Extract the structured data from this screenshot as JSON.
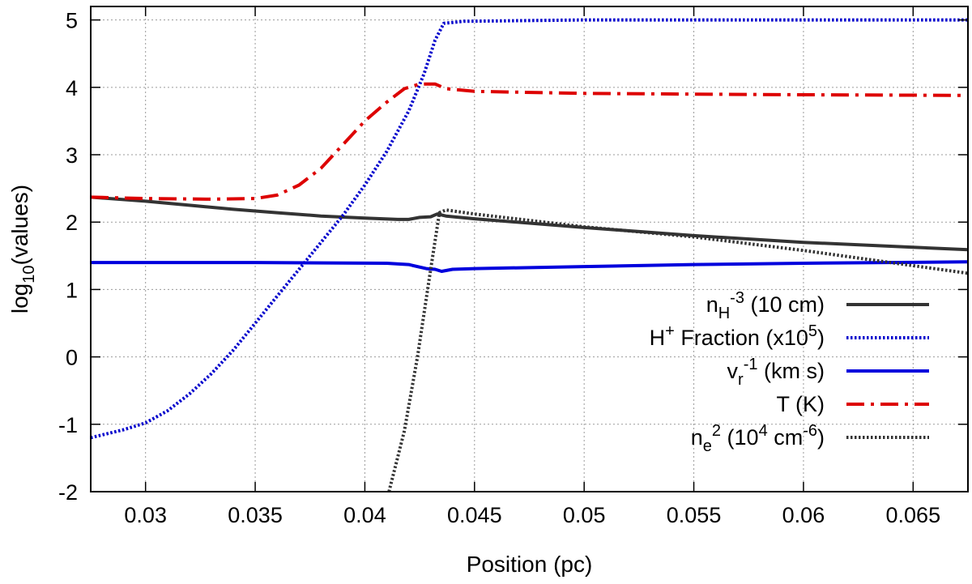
{
  "chart_data": {
    "type": "line",
    "xlabel": "Position (pc)",
    "ylabel": {
      "base": "log",
      "sub": "10",
      "rest": "(values)"
    },
    "xlim": [
      0.0275,
      0.0675
    ],
    "ylim": [
      -2,
      5.2
    ],
    "xticks": [
      0.03,
      0.035,
      0.04,
      0.045,
      0.05,
      0.055,
      0.06,
      0.065
    ],
    "xtick_labels": [
      "0.03",
      "0.035",
      "0.04",
      "0.045",
      "0.05",
      "0.055",
      "0.06",
      "0.065"
    ],
    "yticks": [
      -2,
      -1,
      0,
      1,
      2,
      3,
      4,
      5
    ],
    "ytick_labels": [
      "-2",
      "-1",
      "0",
      "1",
      "2",
      "3",
      "4",
      "5"
    ],
    "grid": true,
    "legend_position": "bottom-right",
    "series": [
      {
        "id": "nH",
        "label": {
          "main": "n",
          "sub": "H",
          "rest": " (10 cm",
          "sup": "-3",
          "tail": ")"
        },
        "color": "#333333",
        "style": "solid",
        "points": [
          [
            0.0275,
            2.37
          ],
          [
            0.03,
            2.31
          ],
          [
            0.032,
            2.25
          ],
          [
            0.034,
            2.19
          ],
          [
            0.036,
            2.14
          ],
          [
            0.038,
            2.09
          ],
          [
            0.04,
            2.06
          ],
          [
            0.0415,
            2.04
          ],
          [
            0.042,
            2.04
          ],
          [
            0.0425,
            2.07
          ],
          [
            0.043,
            2.08
          ],
          [
            0.0433,
            2.12
          ],
          [
            0.0437,
            2.09
          ],
          [
            0.045,
            2.05
          ],
          [
            0.05,
            1.92
          ],
          [
            0.055,
            1.8
          ],
          [
            0.06,
            1.7
          ],
          [
            0.0675,
            1.59
          ]
        ]
      },
      {
        "id": "hplus",
        "label": {
          "main": "H",
          "sup": "+",
          "rest": " Fraction (x10",
          "sup2": "5",
          "tail": ")"
        },
        "color": "#0000cc",
        "style": "dotted",
        "points": [
          [
            0.0275,
            -1.2
          ],
          [
            0.028,
            -1.16
          ],
          [
            0.029,
            -1.08
          ],
          [
            0.03,
            -0.98
          ],
          [
            0.031,
            -0.8
          ],
          [
            0.032,
            -0.55
          ],
          [
            0.033,
            -0.25
          ],
          [
            0.034,
            0.1
          ],
          [
            0.035,
            0.5
          ],
          [
            0.036,
            0.9
          ],
          [
            0.037,
            1.3
          ],
          [
            0.038,
            1.7
          ],
          [
            0.039,
            2.1
          ],
          [
            0.04,
            2.55
          ],
          [
            0.041,
            3.05
          ],
          [
            0.042,
            3.65
          ],
          [
            0.0427,
            4.2
          ],
          [
            0.0432,
            4.7
          ],
          [
            0.0436,
            4.95
          ],
          [
            0.0445,
            4.98
          ],
          [
            0.05,
            5.0
          ],
          [
            0.0675,
            5.0
          ]
        ]
      },
      {
        "id": "vr",
        "label": {
          "main": "v",
          "sub": "r",
          "rest": " (km s",
          "sup": "-1",
          "tail": ")"
        },
        "color": "#0000dd",
        "style": "solid",
        "points": [
          [
            0.0275,
            1.4
          ],
          [
            0.035,
            1.4
          ],
          [
            0.041,
            1.39
          ],
          [
            0.042,
            1.37
          ],
          [
            0.0428,
            1.31
          ],
          [
            0.0432,
            1.3
          ],
          [
            0.0435,
            1.27
          ],
          [
            0.044,
            1.3
          ],
          [
            0.045,
            1.31
          ],
          [
            0.05,
            1.34
          ],
          [
            0.055,
            1.37
          ],
          [
            0.06,
            1.39
          ],
          [
            0.0675,
            1.41
          ]
        ]
      },
      {
        "id": "T",
        "label": {
          "main": "T (K)"
        },
        "color": "#dd0000",
        "style": "dashdot",
        "points": [
          [
            0.0275,
            2.37
          ],
          [
            0.03,
            2.35
          ],
          [
            0.033,
            2.34
          ],
          [
            0.035,
            2.35
          ],
          [
            0.036,
            2.4
          ],
          [
            0.037,
            2.55
          ],
          [
            0.038,
            2.8
          ],
          [
            0.039,
            3.15
          ],
          [
            0.04,
            3.5
          ],
          [
            0.041,
            3.78
          ],
          [
            0.0418,
            3.98
          ],
          [
            0.0425,
            4.05
          ],
          [
            0.0432,
            4.05
          ],
          [
            0.0437,
            3.98
          ],
          [
            0.045,
            3.94
          ],
          [
            0.05,
            3.91
          ],
          [
            0.055,
            3.9
          ],
          [
            0.06,
            3.89
          ],
          [
            0.0675,
            3.88
          ]
        ]
      },
      {
        "id": "ne2",
        "label": {
          "main": "n",
          "sub": "e",
          "sup": "2",
          "rest": " (10",
          "sup2": "4",
          "rest2": " cm",
          "sup3": "-6",
          "tail": ")"
        },
        "color": "#333333",
        "style": "dotted",
        "points": [
          [
            0.0411,
            -2.0
          ],
          [
            0.0418,
            -1.1
          ],
          [
            0.0424,
            0.0
          ],
          [
            0.043,
            1.3
          ],
          [
            0.0434,
            2.14
          ],
          [
            0.0437,
            2.18
          ],
          [
            0.045,
            2.12
          ],
          [
            0.05,
            1.93
          ],
          [
            0.055,
            1.78
          ],
          [
            0.06,
            1.58
          ],
          [
            0.0675,
            1.24
          ]
        ]
      }
    ]
  }
}
